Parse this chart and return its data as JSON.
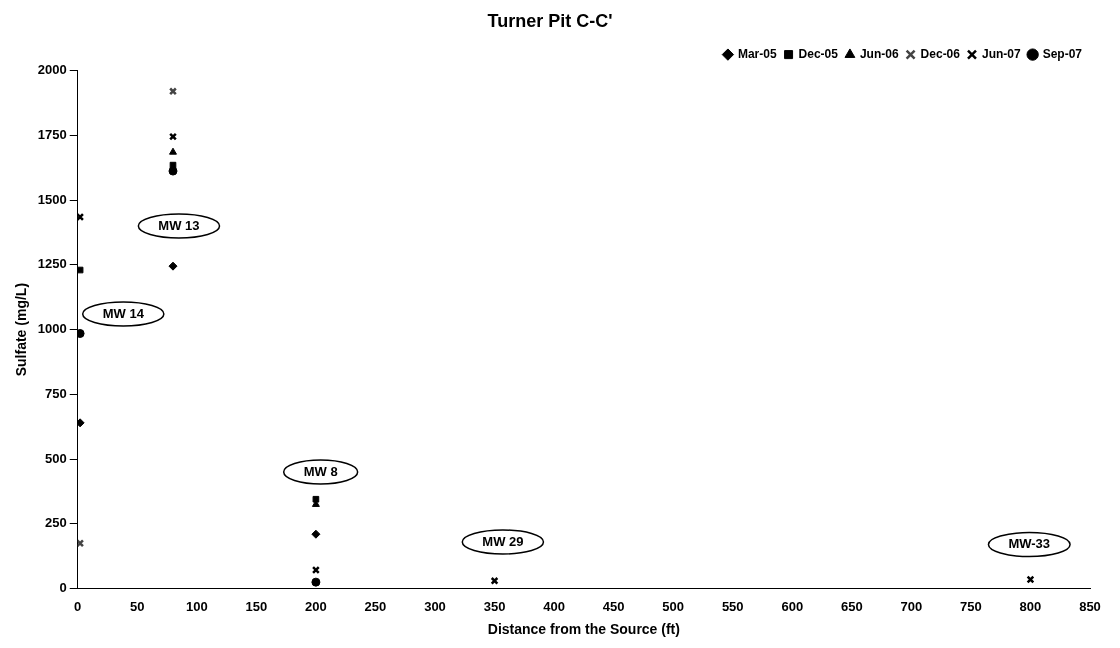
{
  "chart_data": {
    "type": "scatter",
    "title": "Turner Pit C-C'",
    "xlabel": "Distance from the Source (ft)",
    "ylabel": "Sulfate (mg/L)",
    "xlim": [
      0,
      850
    ],
    "xticks": [
      0,
      50,
      100,
      150,
      200,
      250,
      300,
      350,
      400,
      450,
      500,
      550,
      600,
      650,
      700,
      750,
      800,
      850
    ],
    "ylim": [
      0,
      2000
    ],
    "yticks": [
      0,
      250,
      500,
      750,
      1000,
      1250,
      1500,
      1750,
      2000
    ],
    "grid": false,
    "legend": "top right",
    "series": [
      {
        "name": "Mar-05",
        "color": "#000000",
        "marker": "diamond",
        "x": [
          2,
          80,
          200
        ],
        "values": [
          640,
          1245,
          210
        ]
      },
      {
        "name": "Dec-05",
        "color": "#000000",
        "marker": "square",
        "x": [
          2,
          80,
          200
        ],
        "values": [
          1230,
          1635,
          345
        ]
      },
      {
        "name": "Jun-06",
        "color": "#000000",
        "marker": "triangle",
        "x": [
          80,
          200
        ],
        "values": [
          1685,
          325
        ]
      },
      {
        "name": "Dec-06",
        "color": "#444444",
        "marker": "cross",
        "x": [
          2,
          80
        ],
        "values": [
          175,
          1920
        ]
      },
      {
        "name": "Jun-07",
        "color": "#000000",
        "marker": "cross",
        "x": [
          2,
          80,
          200,
          350,
          800
        ],
        "values": [
          1435,
          1745,
          72,
          30,
          35
        ]
      },
      {
        "name": "Sep-07",
        "color": "#000000",
        "marker": "circle",
        "x": [
          2,
          80,
          200
        ],
        "values": [
          985,
          1612,
          25
        ]
      }
    ],
    "annotations": [
      "MW 14",
      "MW 13",
      "MW 8",
      "MW 29",
      "MW-33"
    ]
  }
}
